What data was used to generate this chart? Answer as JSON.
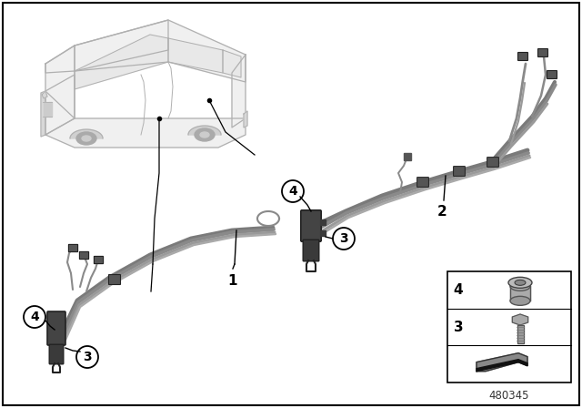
{
  "background_color": "#ffffff",
  "border_color": "#000000",
  "part_number": "480345",
  "wire_colors": [
    "#8a8a8a",
    "#9a9a9a",
    "#7a7a7a",
    "#aaaaaa"
  ],
  "connector_dark": "#555555",
  "connector_edge": "#333333",
  "car_edge": "#b0b0b0",
  "car_fill": "#f0f0f0"
}
